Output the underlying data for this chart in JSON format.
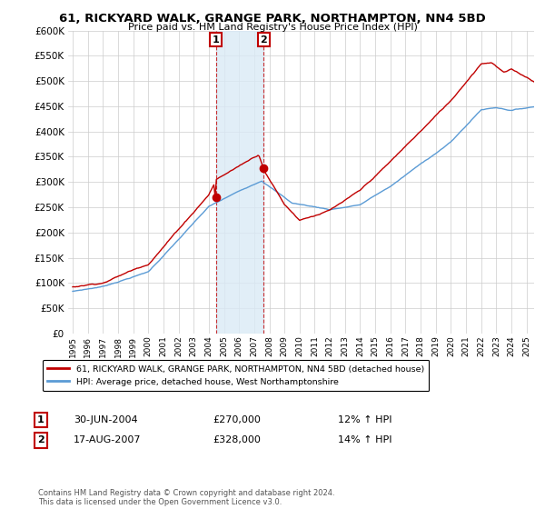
{
  "title": "61, RICKYARD WALK, GRANGE PARK, NORTHAMPTON, NN4 5BD",
  "subtitle": "Price paid vs. HM Land Registry's House Price Index (HPI)",
  "legend_line1": "61, RICKYARD WALK, GRANGE PARK, NORTHAMPTON, NN4 5BD (detached house)",
  "legend_line2": "HPI: Average price, detached house, West Northamptonshire",
  "annotation1_label": "1",
  "annotation1_date": "30-JUN-2004",
  "annotation1_price": "£270,000",
  "annotation1_hpi": "12% ↑ HPI",
  "annotation2_label": "2",
  "annotation2_date": "17-AUG-2007",
  "annotation2_price": "£328,000",
  "annotation2_hpi": "14% ↑ HPI",
  "footer": "Contains HM Land Registry data © Crown copyright and database right 2024.\nThis data is licensed under the Open Government Licence v3.0.",
  "hpi_color": "#5b9bd5",
  "price_color": "#c00000",
  "sale1_x": 2004.458,
  "sale1_y": 270000,
  "sale2_x": 2007.625,
  "sale2_y": 328000,
  "ylim": [
    0,
    600000
  ],
  "xlim_start": 1994.7,
  "xlim_end": 2025.5,
  "yticks": [
    0,
    50000,
    100000,
    150000,
    200000,
    250000,
    300000,
    350000,
    400000,
    450000,
    500000,
    550000,
    600000
  ],
  "xtick_years": [
    1995,
    1996,
    1997,
    1998,
    1999,
    2000,
    2001,
    2002,
    2003,
    2004,
    2005,
    2006,
    2007,
    2008,
    2009,
    2010,
    2011,
    2012,
    2013,
    2014,
    2015,
    2016,
    2017,
    2018,
    2019,
    2020,
    2021,
    2022,
    2023,
    2024,
    2025
  ]
}
